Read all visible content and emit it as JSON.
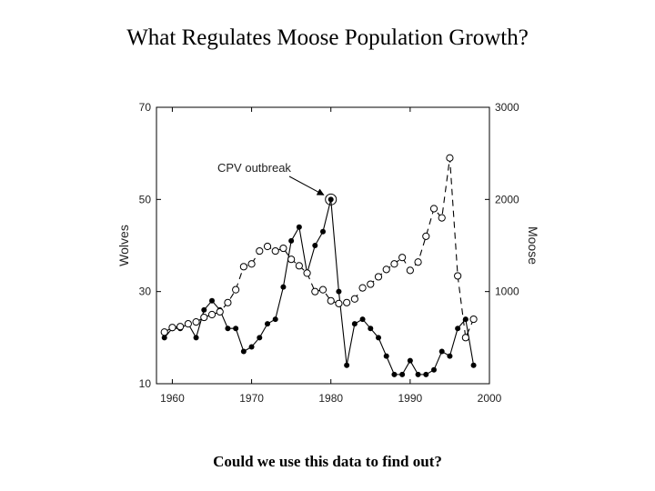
{
  "slide": {
    "title": "What Regulates Moose Population Growth?",
    "caption": "Could we use this data to find out?"
  },
  "chart_data": {
    "type": "line",
    "title": "",
    "xlabel": "",
    "ylabel_left": "Wolves",
    "ylabel_right": "Moose",
    "xlim": [
      1958,
      2000
    ],
    "ylim_left": [
      10,
      70
    ],
    "ylim_right": [
      0,
      3000
    ],
    "x_ticks": [
      1960,
      1970,
      1980,
      1990,
      2000
    ],
    "y_left_ticks": [
      10,
      30,
      50,
      70
    ],
    "y_right_ticks": [
      1000,
      2000,
      3000
    ],
    "grid": false,
    "series": [
      {
        "name": "Wolves",
        "axis": "left",
        "marker": "filled-circle",
        "line": "solid",
        "color": "#000000",
        "x": [
          1959,
          1960,
          1961,
          1962,
          1963,
          1964,
          1965,
          1966,
          1967,
          1968,
          1969,
          1970,
          1971,
          1972,
          1973,
          1974,
          1975,
          1976,
          1977,
          1978,
          1979,
          1980,
          1981,
          1982,
          1983,
          1984,
          1985,
          1986,
          1987,
          1988,
          1989,
          1990,
          1991,
          1992,
          1993,
          1994,
          1995,
          1996,
          1997,
          1998
        ],
        "values": [
          20,
          22,
          22,
          23,
          20,
          26,
          28,
          26,
          22,
          22,
          17,
          18,
          20,
          23,
          24,
          31,
          41,
          44,
          34,
          40,
          43,
          50,
          30,
          14,
          23,
          24,
          22,
          20,
          16,
          12,
          12,
          15,
          12,
          12,
          13,
          17,
          16,
          22,
          24,
          14
        ]
      },
      {
        "name": "Moose",
        "axis": "right",
        "marker": "open-circle",
        "line": "dashed",
        "color": "#000000",
        "x": [
          1959,
          1960,
          1961,
          1962,
          1963,
          1964,
          1965,
          1966,
          1967,
          1968,
          1969,
          1970,
          1971,
          1972,
          1973,
          1974,
          1975,
          1976,
          1977,
          1978,
          1979,
          1980,
          1981,
          1982,
          1983,
          1984,
          1985,
          1986,
          1987,
          1988,
          1989,
          1990,
          1991,
          1992,
          1993,
          1994,
          1995,
          1996,
          1997,
          1998
        ],
        "values": [
          560,
          610,
          620,
          650,
          670,
          720,
          750,
          780,
          880,
          1020,
          1270,
          1300,
          1440,
          1490,
          1440,
          1470,
          1350,
          1280,
          1200,
          1000,
          1020,
          900,
          870,
          880,
          920,
          1040,
          1080,
          1160,
          1240,
          1300,
          1370,
          1230,
          1320,
          1600,
          1900,
          1800,
          2450,
          1170,
          500,
          700
        ]
      }
    ],
    "annotations": [
      {
        "text": "CPV outbreak",
        "x": 1980,
        "y_left": 50
      }
    ]
  }
}
